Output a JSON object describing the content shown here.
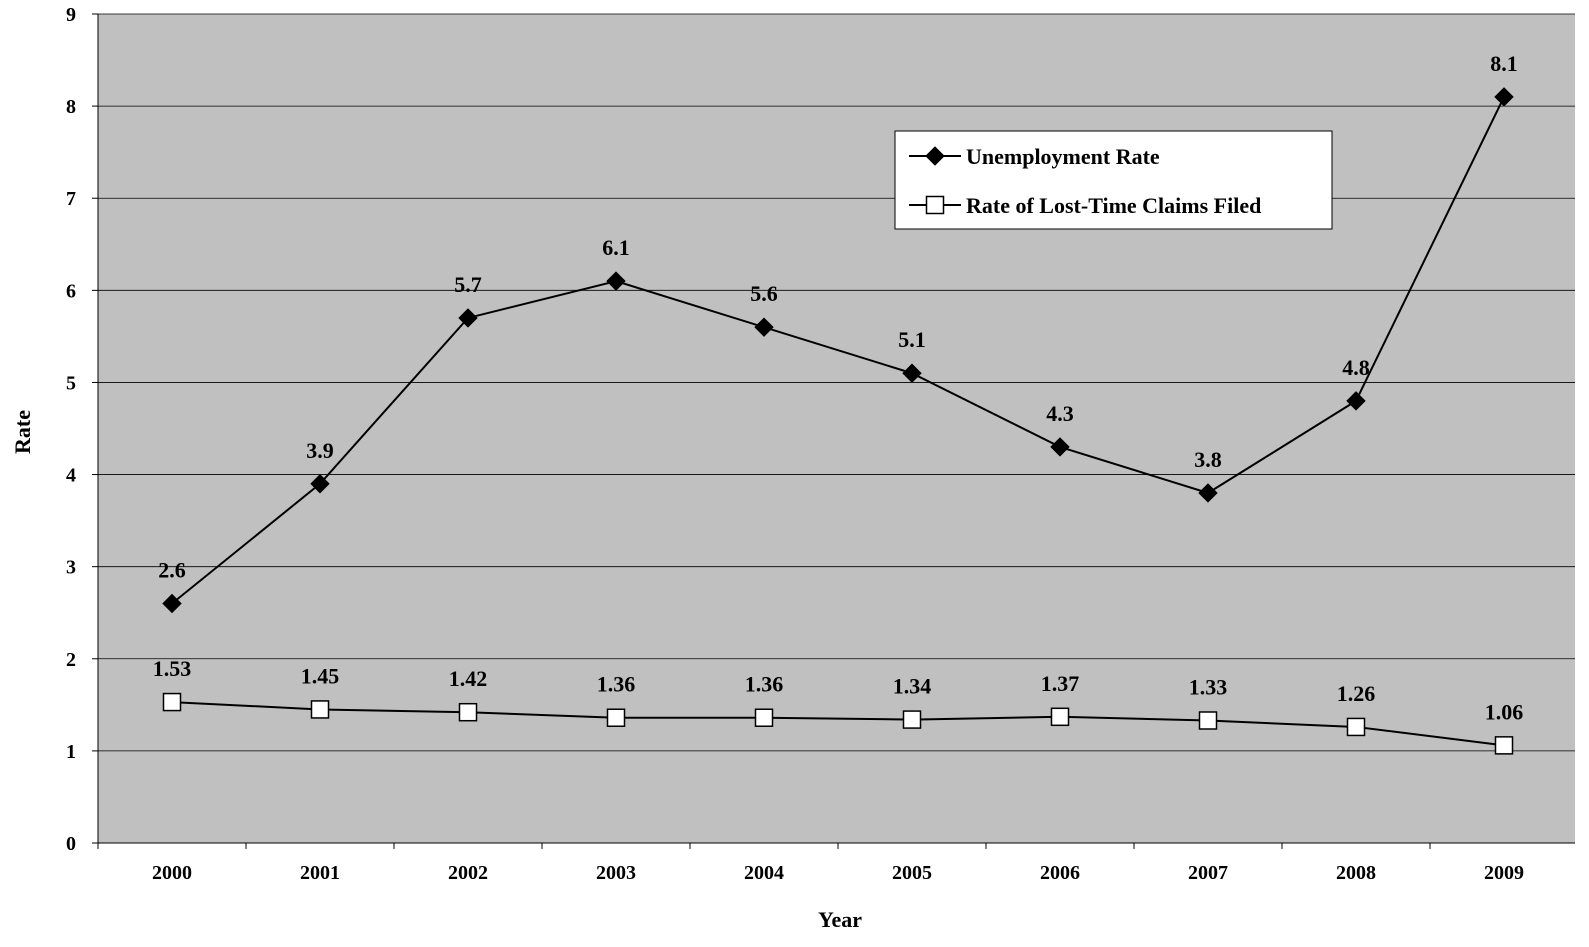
{
  "chart_data": {
    "type": "line",
    "title": "",
    "xlabel": "Year",
    "ylabel": "Rate",
    "categories": [
      "2000",
      "2001",
      "2002",
      "2003",
      "2004",
      "2005",
      "2006",
      "2007",
      "2008",
      "2009"
    ],
    "ylim": [
      0,
      9
    ],
    "yticks": [
      "0",
      "1",
      "2",
      "3",
      "4",
      "5",
      "6",
      "7",
      "8",
      "9"
    ],
    "grid": true,
    "legend_position": "top-right",
    "plot_background": "#c0c0c0",
    "series": [
      {
        "name": "Unemployment Rate",
        "marker": "diamond-filled",
        "values": [
          2.6,
          3.9,
          5.7,
          6.1,
          5.6,
          5.1,
          4.3,
          3.8,
          4.8,
          8.1
        ],
        "labels": [
          "2.6",
          "3.9",
          "5.7",
          "6.1",
          "5.6",
          "5.1",
          "4.3",
          "3.8",
          "4.8",
          "8.1"
        ]
      },
      {
        "name": "Rate of Lost-Time Claims Filed",
        "marker": "square-open",
        "values": [
          1.53,
          1.45,
          1.42,
          1.36,
          1.36,
          1.34,
          1.37,
          1.33,
          1.26,
          1.06
        ],
        "labels": [
          "1.53",
          "1.45",
          "1.42",
          "1.36",
          "1.36",
          "1.34",
          "1.37",
          "1.33",
          "1.26",
          "1.06"
        ]
      }
    ]
  }
}
